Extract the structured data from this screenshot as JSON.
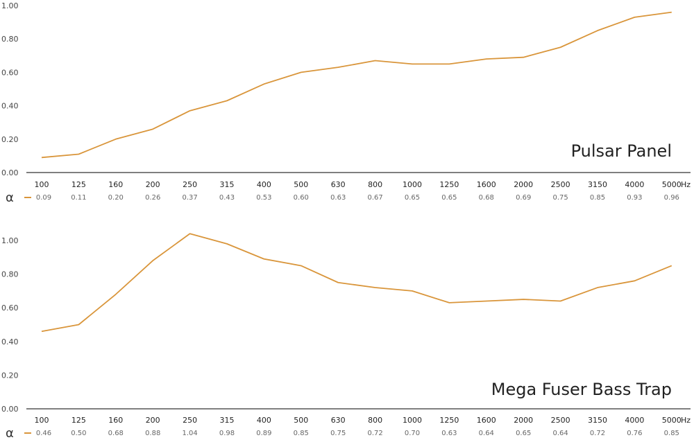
{
  "colors": {
    "line": "#d9953a",
    "axis": "#555555"
  },
  "chart_data": [
    {
      "type": "line",
      "title": "Pulsar Panel",
      "xlabel": "Hz",
      "ylabel": "",
      "row_label": "α",
      "ylim": [
        0,
        1.0
      ],
      "yticks": [
        "0.00",
        "0.20",
        "0.40",
        "0.60",
        "0.80",
        "1.00"
      ],
      "categories": [
        "100",
        "125",
        "160",
        "200",
        "250",
        "315",
        "400",
        "500",
        "630",
        "800",
        "1000",
        "1250",
        "1600",
        "2000",
        "2500",
        "3150",
        "4000",
        "5000"
      ],
      "values": [
        0.09,
        0.11,
        0.2,
        0.26,
        0.37,
        0.43,
        0.53,
        0.6,
        0.63,
        0.67,
        0.65,
        0.65,
        0.68,
        0.69,
        0.75,
        0.85,
        0.93,
        0.96
      ],
      "value_labels": [
        "0.09",
        "0.11",
        "0.20",
        "0.26",
        "0.37",
        "0.43",
        "0.53",
        "0.60",
        "0.63",
        "0.67",
        "0.65",
        "0.65",
        "0.68",
        "0.69",
        "0.75",
        "0.85",
        "0.93",
        "0.96"
      ],
      "grid": false
    },
    {
      "type": "line",
      "title": "Mega Fuser Bass Trap",
      "xlabel": "Hz",
      "ylabel": "",
      "row_label": "α",
      "ylim": [
        0,
        1.0
      ],
      "yticks": [
        "0.00",
        "0.20",
        "0.40",
        "0.60",
        "0.80",
        "1.00"
      ],
      "categories": [
        "100",
        "125",
        "160",
        "200",
        "250",
        "315",
        "400",
        "500",
        "630",
        "800",
        "1000",
        "1250",
        "1600",
        "2000",
        "2500",
        "3150",
        "4000",
        "5000"
      ],
      "values": [
        0.46,
        0.5,
        0.68,
        0.88,
        1.04,
        0.98,
        0.89,
        0.85,
        0.75,
        0.72,
        0.7,
        0.63,
        0.64,
        0.65,
        0.64,
        0.72,
        0.76,
        0.85
      ],
      "value_labels": [
        "0.46",
        "0.50",
        "0.68",
        "0.88",
        "1.04",
        "0.98",
        "0.89",
        "0.85",
        "0.75",
        "0.72",
        "0.70",
        "0.63",
        "0.64",
        "0.65",
        "0.64",
        "0.72",
        "0.76",
        "0.85"
      ],
      "grid": false
    }
  ]
}
